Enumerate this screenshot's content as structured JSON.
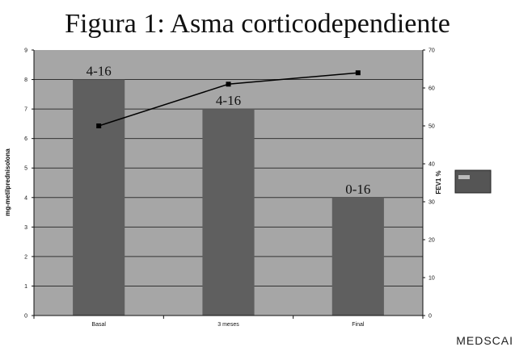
{
  "title": "Figura 1: Asma corticodependiente",
  "footer_text": "MEDSCAI",
  "legend": {
    "swatch_color": "#555555",
    "label": ""
  },
  "colors": {
    "plot_bg": "#a6a6a6",
    "bar": "#5f5f5f",
    "line": "#000000",
    "grid": "#333333"
  },
  "chart_data": {
    "type": "bar",
    "title": "Figura 1: Asma corticodependiente",
    "categories": [
      "Basal",
      "3 meses",
      "Final"
    ],
    "ylabel": "mg-metilprednisolona",
    "y2label": "FEV1 %",
    "ylim": [
      0,
      9
    ],
    "y2lim": [
      0,
      70
    ],
    "yticks": [
      "0",
      "1",
      "2",
      "3",
      "4",
      "5",
      "6",
      "7",
      "8",
      "9"
    ],
    "y2ticks": [
      "0",
      "10",
      "20",
      "30",
      "40",
      "50",
      "60",
      "70"
    ],
    "grid": true,
    "series": [
      {
        "name": "mg-metilprednisolona",
        "type": "bar",
        "axis": "left",
        "values": [
          8,
          7,
          4
        ],
        "data_labels": [
          "4-16",
          "4-16",
          "0-16"
        ]
      },
      {
        "name": "FEV1 %",
        "type": "line",
        "axis": "right",
        "values": [
          50,
          61,
          64
        ]
      }
    ]
  }
}
